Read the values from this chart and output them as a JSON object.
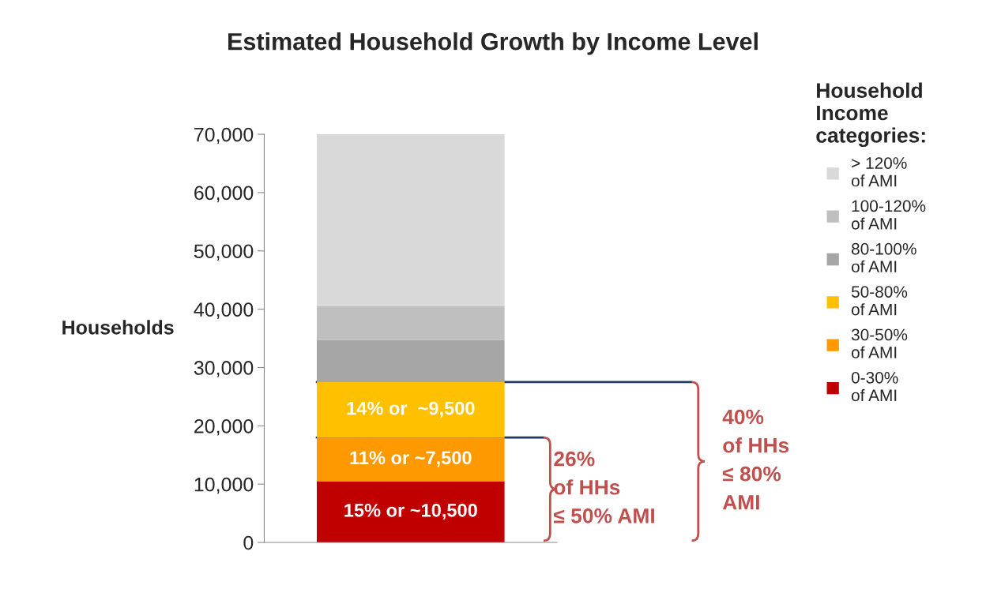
{
  "chart_data": {
    "type": "bar",
    "stacked": true,
    "title": "Estimated Household Growth by Income Level",
    "ylabel": "Households",
    "legend_title": "Household\nIncome\ncategories:",
    "legend": "right",
    "grid": false,
    "categories": [
      null
    ],
    "ylim": [
      0,
      70000
    ],
    "yticks": [
      {
        "value": 0,
        "label": "0"
      },
      {
        "value": 10000,
        "label": "10,000"
      },
      {
        "value": 20000,
        "label": "20,000"
      },
      {
        "value": 30000,
        "label": "30,000"
      },
      {
        "value": 40000,
        "label": "40,000"
      },
      {
        "value": 50000,
        "label": "50,000"
      },
      {
        "value": 60000,
        "label": "60,000"
      },
      {
        "value": 70000,
        "label": "70,000"
      }
    ],
    "series": [
      {
        "name": "0-30%\nof AMI",
        "color": "#c00000",
        "values": [
          10500
        ],
        "value_labels": [
          "15% or ~10,500"
        ]
      },
      {
        "name": "30-50%\nof AMI",
        "color": "#ff9900",
        "values": [
          7500
        ],
        "value_labels": [
          "11% or ~7,500"
        ]
      },
      {
        "name": "50-80%\nof AMI",
        "color": "#ffc000",
        "values": [
          9500
        ],
        "value_labels": [
          "14% or  ~9,500"
        ]
      },
      {
        "name": "80-100%\nof AMI",
        "color": "#a6a6a6",
        "values": [
          7200
        ]
      },
      {
        "name": "100-120%\nof AMI",
        "color": "#bfbfbf",
        "values": [
          5800
        ]
      },
      {
        "name": "> 120%\nof AMI",
        "color": "#d9d9d9",
        "values": [
          29500
        ]
      }
    ],
    "ref_lines": [
      {
        "axis": "y",
        "value": 18000,
        "color": "#1f3864"
      },
      {
        "axis": "y",
        "value": 27500,
        "color": "#1f3864"
      }
    ],
    "annotations": [
      "26%\nof HHs\n≤ 50% AMI",
      "40%\nof HHs\n≤ 80%\nAMI"
    ]
  }
}
